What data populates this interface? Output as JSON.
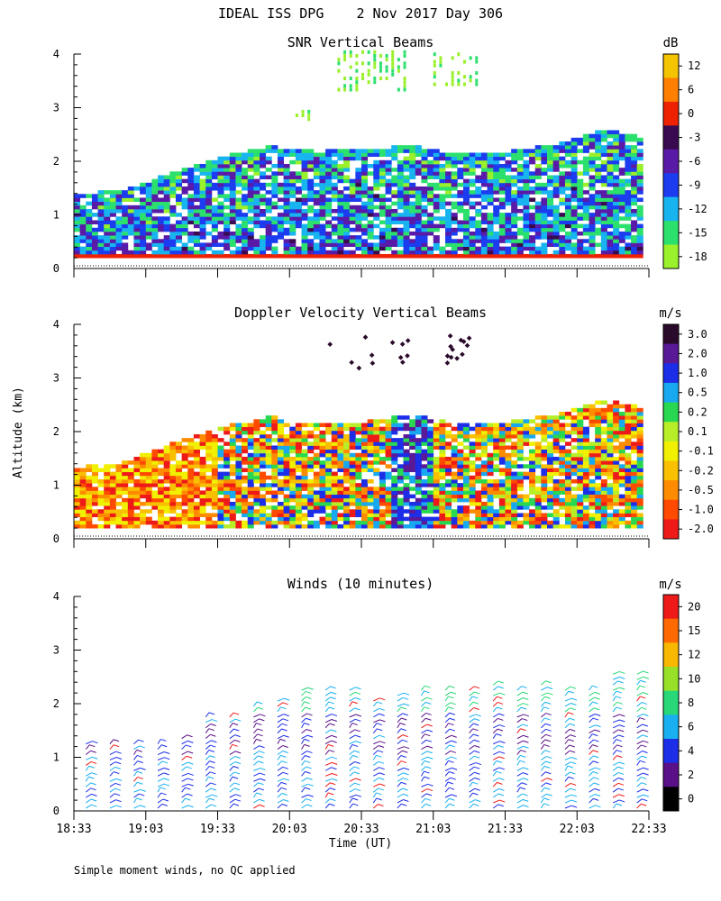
{
  "header": {
    "title": "IDEAL ISS DPG    2 Nov 2017 Day 306",
    "footnote": "Simple moment winds, no QC applied"
  },
  "axes": {
    "ylabel": "Altitude (km)",
    "xlabel": "Time (UT)",
    "y_ticks": [
      "0",
      "1",
      "2",
      "3",
      "4"
    ],
    "x_ticks": [
      "18:33",
      "19:03",
      "19:33",
      "20:03",
      "20:33",
      "21:03",
      "21:33",
      "22:03",
      "22:33"
    ]
  },
  "chart_data": [
    {
      "type": "heatmap",
      "title": "SNR Vertical Beams",
      "units": "dB",
      "x_range": [
        "18:33",
        "22:33"
      ],
      "ylim": [
        0,
        4
      ],
      "colorbar_ticks": [
        "12",
        "6",
        "0",
        "-3",
        "-6",
        "-9",
        "-12",
        "-15",
        "-18"
      ],
      "colorbar_colors": [
        "#f5c400",
        "#ff8000",
        "#ee2200",
        "#3a0a50",
        "#5a1aa8",
        "#1c3cf0",
        "#18b4f0",
        "#2ce06e",
        "#9af02a"
      ],
      "extent": {
        "times_min": [
          0,
          20,
          40,
          60,
          80,
          100,
          120,
          140,
          160,
          180,
          200,
          220,
          240
        ],
        "top_km": [
          1.35,
          1.45,
          1.75,
          2.05,
          2.25,
          2.15,
          2.2,
          2.25,
          2.1,
          2.15,
          2.3,
          2.55,
          2.4
        ],
        "upper_echo_km": [
          0,
          0,
          0,
          0,
          2.85,
          0,
          4.0,
          0,
          4.0,
          0,
          0,
          0,
          0
        ]
      }
    },
    {
      "type": "heatmap",
      "title": "Doppler Velocity Vertical Beams",
      "units": "m/s",
      "x_range": [
        "18:33",
        "22:33"
      ],
      "ylim": [
        0,
        4
      ],
      "colorbar_ticks": [
        "3.0",
        "2.0",
        "1.0",
        "0.5",
        "0.2",
        "0.1",
        "-0.1",
        "-0.2",
        "-0.5",
        "-1.0",
        "-2.0"
      ],
      "colorbar_colors": [
        "#2a0a2a",
        "#5a1a98",
        "#1c2ee8",
        "#18a8f0",
        "#28d850",
        "#b8ee28",
        "#f0f000",
        "#f8c000",
        "#ff8c00",
        "#ff4a00",
        "#ee1a1a"
      ],
      "extent": {
        "times_min": [
          0,
          20,
          40,
          60,
          80,
          100,
          120,
          140,
          160,
          180,
          200,
          220,
          240
        ],
        "top_km": [
          1.3,
          1.4,
          1.75,
          2.05,
          2.25,
          2.1,
          2.15,
          2.3,
          2.1,
          2.15,
          2.3,
          2.55,
          2.4
        ]
      }
    },
    {
      "type": "wind_barbs",
      "title": "Winds (10 minutes)",
      "units": "m/s",
      "x_range": [
        "18:33",
        "22:33"
      ],
      "ylim": [
        0,
        4
      ],
      "colorbar_ticks": [
        "20",
        "15",
        "12",
        "10",
        "8",
        "6",
        "4",
        "2",
        "0"
      ],
      "colorbar_colors": [
        "#ee1a1a",
        "#ff6a00",
        "#f8b800",
        "#98e028",
        "#28d878",
        "#18b0f0",
        "#1c2ee8",
        "#5a1088",
        "#000000"
      ],
      "profiles": [
        {
          "time_min": 5,
          "top_km": 1.3
        },
        {
          "time_min": 15,
          "top_km": 1.35
        },
        {
          "time_min": 25,
          "top_km": 1.3
        },
        {
          "time_min": 35,
          "top_km": 1.3
        },
        {
          "time_min": 45,
          "top_km": 1.4
        },
        {
          "time_min": 55,
          "top_km": 1.85
        },
        {
          "time_min": 65,
          "top_km": 1.85
        },
        {
          "time_min": 75,
          "top_km": 2.05
        },
        {
          "time_min": 85,
          "top_km": 2.15
        },
        {
          "time_min": 95,
          "top_km": 2.3
        },
        {
          "time_min": 105,
          "top_km": 2.3
        },
        {
          "time_min": 115,
          "top_km": 2.35
        },
        {
          "time_min": 125,
          "top_km": 2.1
        },
        {
          "time_min": 135,
          "top_km": 2.2
        },
        {
          "time_min": 145,
          "top_km": 2.3
        },
        {
          "time_min": 155,
          "top_km": 2.35
        },
        {
          "time_min": 165,
          "top_km": 2.35
        },
        {
          "time_min": 175,
          "top_km": 2.4
        },
        {
          "time_min": 185,
          "top_km": 2.3
        },
        {
          "time_min": 195,
          "top_km": 2.4
        },
        {
          "time_min": 205,
          "top_km": 2.3
        },
        {
          "time_min": 215,
          "top_km": 2.35
        },
        {
          "time_min": 225,
          "top_km": 2.6
        },
        {
          "time_min": 235,
          "top_km": 2.6
        }
      ]
    }
  ]
}
